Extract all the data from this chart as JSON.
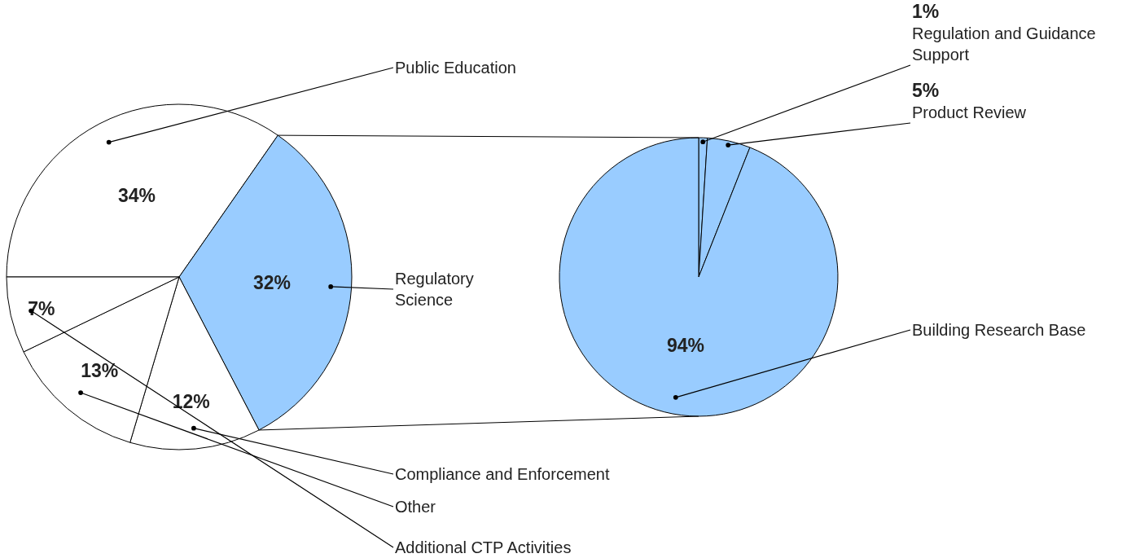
{
  "chart_data": [
    {
      "type": "pie",
      "categories": [
        "Public Education",
        "Regulatory Science",
        "Compliance and Enforcement",
        "Other",
        "Additional CTP Activities"
      ],
      "values": [
        34,
        32,
        12,
        13,
        7
      ],
      "value_labels": [
        "34%",
        "32%",
        "12%",
        "13%",
        "7%"
      ],
      "colors": [
        "#ffffff",
        "#99ccff",
        "#ffffff",
        "#ffffff",
        "#ffffff"
      ]
    },
    {
      "type": "pie",
      "categories": [
        "Regulation and Guidance Support",
        "Product Review",
        "Building Research Base"
      ],
      "values": [
        1,
        5,
        94
      ],
      "value_labels": [
        "1%",
        "5%",
        "94%"
      ],
      "colors": [
        "#99ccff",
        "#99ccff",
        "#99ccff"
      ]
    }
  ]
}
